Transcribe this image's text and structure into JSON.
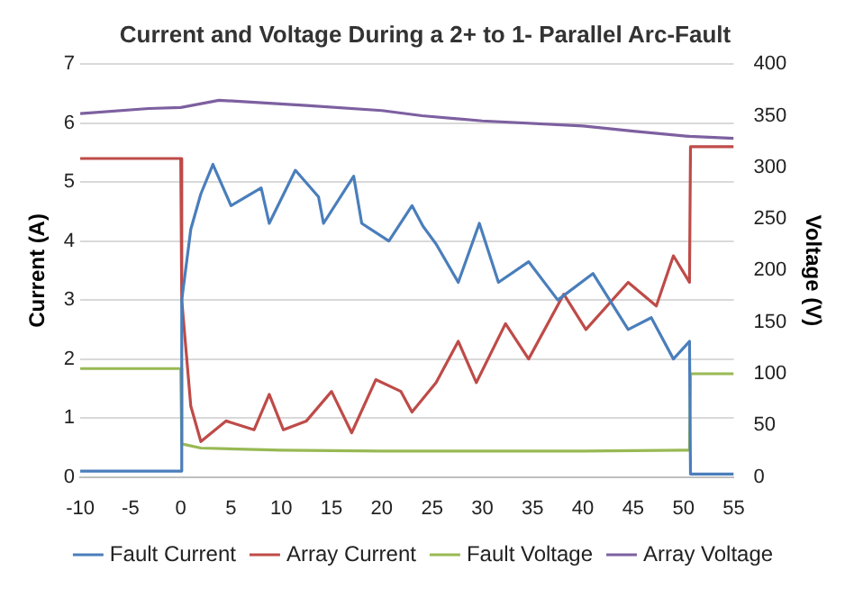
{
  "chart_data": {
    "type": "line",
    "title": "Current and Voltage During a 2+ to 1- Parallel Arc-Fault",
    "xlabel": null,
    "ylabel": "Current (A)",
    "y2label": "Voltage (V)",
    "xlim": [
      -10,
      55
    ],
    "xticks": [
      -10,
      -5,
      0,
      5,
      10,
      15,
      20,
      25,
      30,
      35,
      40,
      45,
      50,
      55
    ],
    "ylim": [
      0,
      7
    ],
    "yticks": [
      0,
      1,
      2,
      3,
      4,
      5,
      6,
      7
    ],
    "y2lim": [
      0,
      400
    ],
    "y2ticks": [
      0,
      50,
      100,
      150,
      200,
      250,
      300,
      350,
      400
    ],
    "grid": "y",
    "legend": "bottom",
    "marker": "none",
    "series": [
      {
        "name": "Fault Current",
        "color": "#4a7ebb",
        "x": [
          -10,
          -5,
          0,
          0.1,
          1,
          2,
          3.2,
          5,
          8,
          8.8,
          11.4,
          13.7,
          14.2,
          17.2,
          18,
          20.7,
          23,
          24.1,
          25.4,
          27.6,
          29.7,
          31.6,
          34.6,
          37.5,
          41,
          44.5,
          46.8,
          49,
          50.6,
          50.7,
          55
        ],
        "values": [
          0.1,
          0.1,
          0.1,
          3.0,
          4.2,
          4.8,
          5.3,
          4.6,
          4.9,
          4.3,
          5.2,
          4.75,
          4.3,
          5.1,
          4.3,
          4.0,
          4.6,
          4.25,
          3.95,
          3.3,
          4.3,
          3.3,
          3.65,
          3.0,
          3.45,
          2.5,
          2.7,
          2.0,
          2.3,
          0.05,
          0.05
        ]
      },
      {
        "name": "Array Current",
        "color": "#be4b48",
        "x": [
          -10,
          -5,
          0,
          0.1,
          1,
          2,
          4.5,
          7.3,
          8.8,
          10.2,
          12.5,
          15,
          17,
          19.4,
          21.9,
          23,
          25.4,
          27.6,
          29.4,
          32.3,
          34.6,
          38.1,
          40.3,
          44.5,
          47.3,
          49,
          50.6,
          50.7,
          55
        ],
        "values": [
          5.4,
          5.4,
          5.4,
          3.0,
          1.2,
          0.6,
          0.95,
          0.8,
          1.4,
          0.8,
          0.95,
          1.45,
          0.75,
          1.65,
          1.45,
          1.1,
          1.6,
          2.3,
          1.6,
          2.6,
          2.0,
          3.1,
          2.5,
          3.3,
          2.9,
          3.75,
          3.3,
          5.6,
          5.6
        ]
      },
      {
        "name": "Fault Voltage",
        "color": "#98b954",
        "axis": "y2",
        "x": [
          -10,
          -5,
          0,
          0.1,
          2,
          10,
          20,
          30,
          40,
          50,
          50.6,
          50.7,
          55
        ],
        "values": [
          105,
          105,
          105,
          32,
          28,
          26,
          25,
          25,
          25,
          26,
          26,
          100,
          100
        ]
      },
      {
        "name": "Array Voltage",
        "color": "#7d60a0",
        "axis": "y2",
        "x": [
          -10,
          -3.2,
          0,
          3.8,
          12.5,
          20,
          24,
          30,
          40,
          45,
          50.6,
          55
        ],
        "values": [
          352,
          357,
          358,
          365,
          360,
          355,
          350,
          345,
          340,
          335,
          330,
          328
        ]
      }
    ]
  }
}
